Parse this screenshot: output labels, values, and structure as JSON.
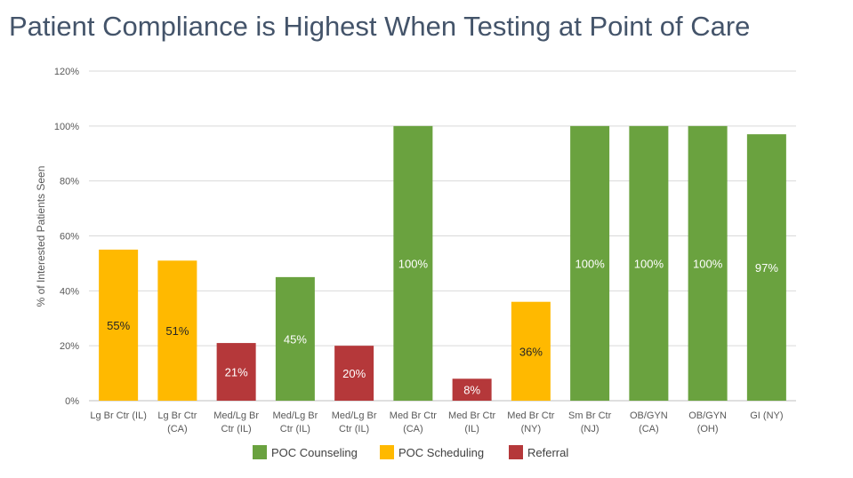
{
  "chart_data": {
    "type": "bar",
    "title": "Patient Compliance is Highest When Testing at Point of Care",
    "ylabel": "% of Interested Patients Seen",
    "xlabel": "",
    "ylim": [
      0,
      120
    ],
    "yticks": [
      "0%",
      "20%",
      "40%",
      "60%",
      "80%",
      "100%",
      "120%"
    ],
    "grid": true,
    "legend_position": "bottom",
    "legend": [
      {
        "name": "POC Counseling",
        "color": "#6aa23f"
      },
      {
        "name": "POC Scheduling",
        "color": "#ffb900"
      },
      {
        "name": "Referral",
        "color": "#b5383a"
      }
    ],
    "categories": [
      [
        "Lg Br Ctr (IL)"
      ],
      [
        "Lg Br Ctr",
        "(CA)"
      ],
      [
        "Med/Lg Br",
        "Ctr (IL)"
      ],
      [
        "Med/Lg Br",
        "Ctr (IL)"
      ],
      [
        "Med/Lg Br",
        "Ctr (IL)"
      ],
      [
        "Med Br Ctr",
        "(CA)"
      ],
      [
        "Med Br Ctr",
        "(IL)"
      ],
      [
        "Med Br Ctr",
        "(NY)"
      ],
      [
        "Sm Br Ctr",
        "(NJ)"
      ],
      [
        "OB/GYN",
        "(CA)"
      ],
      [
        "OB/GYN",
        "(OH)"
      ],
      [
        "GI (NY)"
      ]
    ],
    "values": [
      55,
      51,
      21,
      45,
      20,
      100,
      8,
      36,
      100,
      100,
      100,
      97
    ],
    "labels": [
      "55%",
      "51%",
      "21%",
      "45%",
      "20%",
      "100%",
      "8%",
      "36%",
      "100%",
      "100%",
      "100%",
      "97%"
    ],
    "bar_series": [
      "POC Scheduling",
      "POC Scheduling",
      "Referral",
      "POC Counseling",
      "Referral",
      "POC Counseling",
      "Referral",
      "POC Scheduling",
      "POC Counseling",
      "POC Counseling",
      "POC Counseling",
      "POC Counseling"
    ]
  }
}
